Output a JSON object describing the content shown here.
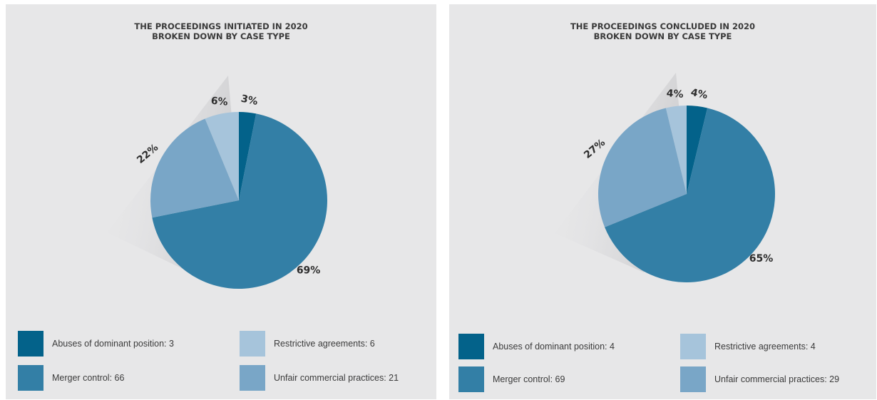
{
  "colors": {
    "abuses": "#03628a",
    "restrictive": "#a6c4db",
    "merger": "#337fa6",
    "unfair": "#79a6c7",
    "panel_bg": "#e7e7e8"
  },
  "chart_data": [
    {
      "type": "pie",
      "title": [
        "THE PROCEEDINGS INITIATED IN 2020",
        "BROKEN DOWN BY CASE TYPE"
      ],
      "slices": [
        {
          "key": "abuses",
          "legend": "Abuses of dominant position: 3",
          "value": 3,
          "pct_label": "3%"
        },
        {
          "key": "merger",
          "legend": "Merger control: 66",
          "value": 66,
          "pct_label": "69%"
        },
        {
          "key": "unfair",
          "legend": "Unfair commercial practices: 21",
          "value": 21,
          "pct_label": "22%"
        },
        {
          "key": "restrictive",
          "legend": "Restrictive agreements: 6",
          "value": 6,
          "pct_label": "6%"
        }
      ]
    },
    {
      "type": "pie",
      "title": [
        "THE PROCEEDINGS CONCLUDED IN 2020",
        "BROKEN DOWN BY CASE TYPE"
      ],
      "slices": [
        {
          "key": "abuses",
          "legend": "Abuses of dominant position: 4",
          "value": 4,
          "pct_label": "4%"
        },
        {
          "key": "merger",
          "legend": "Merger control: 69",
          "value": 69,
          "pct_label": "65%"
        },
        {
          "key": "unfair",
          "legend": "Unfair commercial practices: 29",
          "value": 29,
          "pct_label": "27%"
        },
        {
          "key": "restrictive",
          "legend": "Restrictive agreements: 4",
          "value": 4,
          "pct_label": "4%"
        }
      ]
    }
  ]
}
